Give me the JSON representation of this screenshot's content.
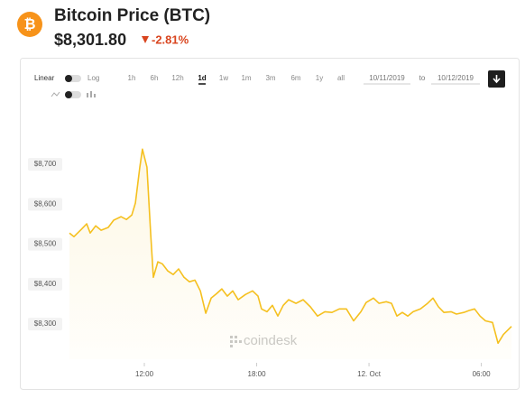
{
  "header": {
    "title": "Bitcoin Price (BTC)",
    "price": "$8,301.80",
    "change": "-2.81%"
  },
  "controls": {
    "linear": "Linear",
    "log": "Log",
    "ranges": [
      "1h",
      "6h",
      "12h",
      "1d",
      "1w",
      "1m",
      "3m",
      "6m",
      "1y",
      "all"
    ],
    "from": "10/11/2019",
    "to_word": "to",
    "to": "10/12/2019"
  },
  "chart_data": {
    "type": "line",
    "watermark": "coindesk",
    "color": "#f5c01f",
    "x": [
      8.0,
      8.24,
      8.63,
      8.92,
      9.11,
      9.4,
      9.69,
      10.07,
      10.36,
      10.75,
      11.04,
      11.33,
      11.52,
      11.76,
      11.9,
      12.14,
      12.34,
      12.48,
      12.72,
      12.96,
      13.25,
      13.54,
      13.83,
      14.12,
      14.41,
      14.7,
      14.99,
      15.28,
      15.57,
      15.86,
      16.14,
      16.43,
      16.72,
      17.01,
      17.4,
      17.78,
      18.07,
      18.26,
      18.55,
      18.84,
      19.13,
      19.42,
      19.71,
      20.1,
      20.48,
      20.87,
      21.25,
      21.64,
      22.02,
      22.41,
      22.79,
      23.18,
      23.57,
      23.85,
      24.24,
      24.53,
      24.92,
      25.2,
      25.49,
      25.78,
      26.07,
      26.36,
      26.75,
      27.13,
      27.42,
      27.71,
      28.0,
      28.38,
      28.67,
      29.06,
      29.35,
      29.64,
      29.93,
      30.22,
      30.6,
      30.89,
      31.18,
      31.61
    ],
    "values": [
      8528,
      8519,
      8537,
      8551,
      8528,
      8546,
      8535,
      8542,
      8560,
      8569,
      8562,
      8573,
      8603,
      8693,
      8738,
      8693,
      8524,
      8417,
      8456,
      8451,
      8433,
      8424,
      8438,
      8417,
      8406,
      8410,
      8383,
      8327,
      8365,
      8376,
      8388,
      8370,
      8383,
      8361,
      8374,
      8383,
      8370,
      8338,
      8331,
      8347,
      8320,
      8347,
      8361,
      8352,
      8361,
      8343,
      8320,
      8331,
      8329,
      8338,
      8338,
      8308,
      8331,
      8354,
      8365,
      8352,
      8356,
      8352,
      8320,
      8329,
      8320,
      8331,
      8338,
      8352,
      8365,
      8343,
      8329,
      8331,
      8325,
      8329,
      8334,
      8338,
      8320,
      8308,
      8304,
      8252,
      8274,
      8294
    ],
    "xlim": [
      8.0,
      31.61
    ],
    "xticks": [
      {
        "value": 12,
        "label": "12:00"
      },
      {
        "value": 18,
        "label": "18:00"
      },
      {
        "value": 24,
        "label": "12. Oct"
      },
      {
        "value": 30,
        "label": "06:00"
      }
    ],
    "ylim": [
      8212,
      8811
    ],
    "yticks": [
      {
        "value": 8300,
        "label": "$8,300"
      },
      {
        "value": 8400,
        "label": "$8,400"
      },
      {
        "value": 8500,
        "label": "$8,500"
      },
      {
        "value": 8600,
        "label": "$8,600"
      },
      {
        "value": 8700,
        "label": "$8,700"
      }
    ]
  }
}
